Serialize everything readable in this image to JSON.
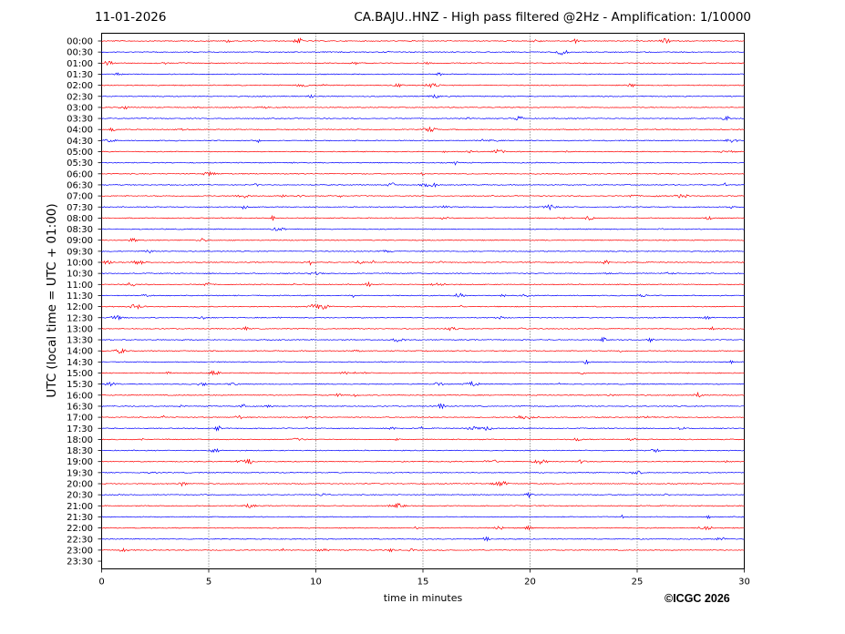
{
  "header": {
    "date": "11-01-2026",
    "title": "CA.BAJU..HNZ - High pass filtered @2Hz - Amplification: 1/10000"
  },
  "copyright": "©ICGC 2026",
  "chart_data": {
    "type": "line",
    "subtype": "helicorder",
    "title": "CA.BAJU..HNZ - High pass filtered @2Hz - Amplification: 1/10000",
    "xlabel": "time in minutes",
    "ylabel": "UTC (local time = UTC + 01:00)",
    "xlim": [
      0,
      30
    ],
    "xticks": [
      0,
      5,
      10,
      15,
      20,
      25,
      30
    ],
    "grid": "vertical dotted at x ticks",
    "trace_colors": [
      "#ff0000",
      "#0000ff"
    ],
    "rows": [
      "00:00",
      "00:30",
      "01:00",
      "01:30",
      "02:00",
      "02:30",
      "03:00",
      "03:30",
      "04:00",
      "04:30",
      "05:00",
      "05:30",
      "06:00",
      "06:30",
      "07:00",
      "07:30",
      "08:00",
      "08:30",
      "09:00",
      "09:30",
      "10:00",
      "10:30",
      "11:00",
      "11:30",
      "12:00",
      "12:30",
      "13:00",
      "13:30",
      "14:00",
      "14:30",
      "15:00",
      "15:30",
      "16:00",
      "16:30",
      "17:00",
      "17:30",
      "18:00",
      "18:30",
      "19:00",
      "19:30",
      "20:00",
      "20:30",
      "21:00",
      "21:30",
      "22:00",
      "22:30",
      "23:00",
      "23:30"
    ],
    "recorded_rows": 47
  }
}
